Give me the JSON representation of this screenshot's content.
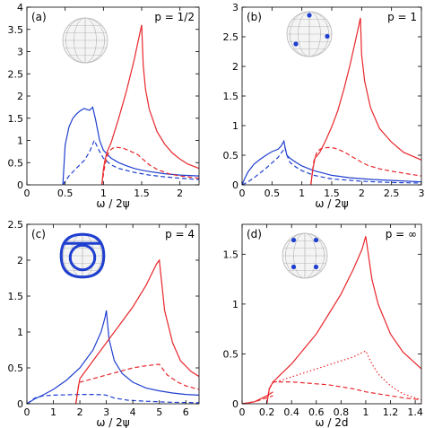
{
  "colors": {
    "blue": "#1f3fd0",
    "red": "#e8262b",
    "axis": "#000000",
    "sphere_line": "#b8b8b8"
  },
  "chart_data": [
    {
      "type": "line",
      "panel_label": "(a)",
      "annotation": "p = 1/2",
      "xlabel": "ω / 2ψ",
      "ylabel": "",
      "xlim": [
        0,
        2.25
      ],
      "ylim": [
        0,
        4
      ],
      "xticks": [
        0,
        0.5,
        1,
        1.5,
        2
      ],
      "xtick_labels": [
        "0",
        "0.5",
        "1",
        "1.5",
        "2"
      ],
      "yticks": [
        0,
        0.5,
        1,
        1.5,
        2,
        2.5,
        3,
        3.5,
        4
      ],
      "ytick_labels": [
        "0",
        "0.5",
        "1",
        "1.5",
        "2",
        "2.5",
        "3",
        "3.5",
        "4"
      ],
      "inset_icon": "sphere-icon",
      "inset_dots": [],
      "series": [
        {
          "color": "blue",
          "style": "solid",
          "x": [
            0.47,
            0.5,
            0.55,
            0.6,
            0.65,
            0.7,
            0.75,
            0.78,
            0.82,
            0.86,
            0.9,
            0.95,
            1.0,
            1.1,
            1.2,
            1.3,
            1.4,
            1.5,
            1.6,
            1.8,
            2.0,
            2.25
          ],
          "y": [
            0,
            0.9,
            1.3,
            1.5,
            1.6,
            1.67,
            1.72,
            1.7,
            1.68,
            1.75,
            1.45,
            1.0,
            0.78,
            0.6,
            0.5,
            0.43,
            0.37,
            0.33,
            0.3,
            0.25,
            0.22,
            0.2
          ]
        },
        {
          "color": "blue",
          "style": "dashed",
          "x": [
            0.47,
            0.55,
            0.65,
            0.75,
            0.82,
            0.88,
            0.95,
            1.0,
            1.1,
            1.2,
            1.4,
            1.6,
            1.8,
            2.0,
            2.25
          ],
          "y": [
            0,
            0.2,
            0.38,
            0.55,
            0.75,
            1.0,
            0.75,
            0.6,
            0.45,
            0.37,
            0.28,
            0.22,
            0.18,
            0.15,
            0.12
          ]
        },
        {
          "color": "red",
          "style": "solid",
          "x": [
            0.98,
            1.0,
            1.02,
            1.05,
            1.1,
            1.2,
            1.3,
            1.4,
            1.45,
            1.5,
            1.52,
            1.55,
            1.6,
            1.7,
            1.8,
            1.9,
            2.0,
            2.1,
            2.25
          ],
          "y": [
            0,
            0.35,
            0.55,
            0.75,
            0.95,
            1.5,
            2.1,
            2.8,
            3.2,
            3.6,
            2.7,
            2.15,
            1.7,
            1.2,
            0.92,
            0.72,
            0.58,
            0.47,
            0.37
          ]
        },
        {
          "color": "red",
          "style": "dashed",
          "x": [
            0.98,
            1.02,
            1.06,
            1.1,
            1.15,
            1.25,
            1.35,
            1.45,
            1.5,
            1.6,
            1.7,
            1.85,
            2.0,
            2.25
          ],
          "y": [
            0,
            0.45,
            0.7,
            0.8,
            0.85,
            0.83,
            0.76,
            0.68,
            0.6,
            0.45,
            0.35,
            0.25,
            0.2,
            0.15
          ]
        }
      ]
    },
    {
      "type": "line",
      "panel_label": "(b)",
      "annotation": "p = 1",
      "xlabel": "ω / 2ψ",
      "ylabel": "",
      "xlim": [
        0,
        3
      ],
      "ylim": [
        0,
        3
      ],
      "xticks": [
        0,
        0.5,
        1,
        1.5,
        2,
        2.5,
        3
      ],
      "xtick_labels": [
        "0",
        "0.5",
        "1",
        "1.5",
        "2",
        "2.5",
        "3"
      ],
      "yticks": [
        0,
        0.5,
        1,
        1.5,
        2,
        2.5,
        3
      ],
      "ytick_labels": [
        "0",
        "0.5",
        "1",
        "1.5",
        "2",
        "2.5",
        "3"
      ],
      "inset_icon": "sphere-icon",
      "inset_dots": [
        [
          0.5,
          0.08
        ],
        [
          0.2,
          0.72
        ],
        [
          0.9,
          0.55
        ]
      ],
      "series": [
        {
          "color": "blue",
          "style": "solid",
          "x": [
            0,
            0.05,
            0.1,
            0.2,
            0.3,
            0.4,
            0.5,
            0.6,
            0.65,
            0.7,
            0.72,
            0.75,
            0.8,
            0.9,
            1.0,
            1.2,
            1.5,
            1.8,
            2.2,
            2.6,
            3.0
          ],
          "y": [
            0,
            0.12,
            0.22,
            0.35,
            0.43,
            0.5,
            0.56,
            0.6,
            0.65,
            0.74,
            0.62,
            0.5,
            0.45,
            0.38,
            0.32,
            0.24,
            0.16,
            0.12,
            0.09,
            0.07,
            0.05
          ]
        },
        {
          "color": "blue",
          "style": "dashed",
          "x": [
            0,
            0.1,
            0.2,
            0.3,
            0.4,
            0.5,
            0.6,
            0.65,
            0.7,
            0.72,
            0.75,
            0.8,
            0.9,
            1.0,
            1.2,
            1.5,
            2.0,
            2.5,
            3.0
          ],
          "y": [
            0,
            0.05,
            0.12,
            0.2,
            0.28,
            0.37,
            0.46,
            0.53,
            0.6,
            0.63,
            0.5,
            0.38,
            0.3,
            0.24,
            0.16,
            0.1,
            0.06,
            0.04,
            0.03
          ]
        },
        {
          "color": "red",
          "style": "solid",
          "x": [
            1.15,
            1.18,
            1.22,
            1.26,
            1.3,
            1.4,
            1.5,
            1.6,
            1.7,
            1.8,
            1.9,
            1.98,
            2.0,
            2.05,
            2.15,
            2.3,
            2.5,
            2.7,
            3.0
          ],
          "y": [
            0,
            0.25,
            0.45,
            0.5,
            0.55,
            0.75,
            0.98,
            1.25,
            1.6,
            2.0,
            2.45,
            2.82,
            2.2,
            1.75,
            1.3,
            0.95,
            0.72,
            0.55,
            0.42
          ]
        },
        {
          "color": "red",
          "style": "dashed",
          "x": [
            1.15,
            1.2,
            1.25,
            1.3,
            1.35,
            1.45,
            1.55,
            1.65,
            1.75,
            1.85,
            1.95,
            2.0,
            2.1,
            2.3,
            2.5,
            2.8,
            3.0
          ],
          "y": [
            0,
            0.4,
            0.55,
            0.6,
            0.62,
            0.63,
            0.62,
            0.58,
            0.53,
            0.47,
            0.41,
            0.38,
            0.33,
            0.27,
            0.23,
            0.18,
            0.15
          ]
        }
      ]
    },
    {
      "type": "line",
      "panel_label": "(c)",
      "annotation": "p = 4",
      "xlabel": "ω / 2ψ",
      "ylabel": "",
      "xlim": [
        0,
        6.5
      ],
      "ylim": [
        0,
        2.5
      ],
      "xticks": [
        0,
        1,
        2,
        3,
        4,
        5,
        6
      ],
      "xtick_labels": [
        "0",
        "1",
        "2",
        "3",
        "4",
        "5",
        "6"
      ],
      "yticks": [
        0,
        0.5,
        1,
        1.5,
        2,
        2.5
      ],
      "ytick_labels": [
        "0",
        "0.5",
        "1",
        "1.5",
        "2",
        "2.5"
      ],
      "inset_icon": "cube-sphere-icon",
      "inset_dots": [],
      "series": [
        {
          "color": "blue",
          "style": "solid",
          "x": [
            0,
            0.3,
            0.6,
            1.0,
            1.5,
            2.0,
            2.5,
            2.8,
            2.95,
            3.0,
            3.1,
            3.3,
            3.6,
            4.0,
            4.5,
            5.0,
            5.5,
            6.0,
            6.5
          ],
          "y": [
            0,
            0.07,
            0.12,
            0.2,
            0.33,
            0.5,
            0.75,
            1.0,
            1.2,
            1.3,
            0.9,
            0.6,
            0.42,
            0.3,
            0.22,
            0.18,
            0.15,
            0.13,
            0.12
          ]
        },
        {
          "color": "blue",
          "style": "dashed",
          "x": [
            0,
            0.3,
            0.6,
            1.0,
            1.5,
            2.0,
            2.5,
            2.9,
            3.0,
            3.3,
            3.8,
            4.5,
            5.5,
            6.5
          ],
          "y": [
            0,
            0.08,
            0.11,
            0.12,
            0.125,
            0.13,
            0.13,
            0.125,
            0.12,
            0.08,
            0.05,
            0.035,
            0.02,
            0.015
          ]
        },
        {
          "color": "red",
          "style": "solid",
          "x": [
            1.85,
            1.95,
            2.0,
            2.5,
            3.0,
            3.5,
            4.0,
            4.5,
            4.9,
            5.0,
            5.2,
            5.5,
            5.8,
            6.2,
            6.5
          ],
          "y": [
            0,
            0.25,
            0.35,
            0.6,
            0.85,
            1.1,
            1.35,
            1.65,
            1.95,
            2.0,
            1.3,
            0.85,
            0.6,
            0.45,
            0.38
          ]
        },
        {
          "color": "red",
          "style": "dashed",
          "x": [
            1.85,
            1.95,
            2.0,
            2.5,
            3.0,
            3.5,
            4.0,
            4.5,
            5.0,
            5.3,
            5.7,
            6.0,
            6.5
          ],
          "y": [
            0,
            0.25,
            0.3,
            0.35,
            0.4,
            0.45,
            0.5,
            0.53,
            0.55,
            0.4,
            0.3,
            0.25,
            0.2
          ]
        }
      ]
    },
    {
      "type": "line",
      "panel_label": "(d)",
      "annotation": "p = ∞",
      "xlabel": "ω / 2d",
      "ylabel": "",
      "xlim": [
        0,
        1.45
      ],
      "ylim": [
        0,
        1.8
      ],
      "xticks": [
        0,
        0.2,
        0.4,
        0.6,
        0.8,
        1,
        1.2,
        1.4
      ],
      "xtick_labels": [
        "0",
        "0.2",
        "0.4",
        "0.6",
        "0.8",
        "1",
        "1.2",
        "1.4"
      ],
      "yticks": [
        0,
        0.5,
        1,
        1.5
      ],
      "ytick_labels": [
        "0",
        "0.5",
        "1",
        "1.5"
      ],
      "inset_icon": "sphere-icon",
      "inset_dots": [
        [
          0.25,
          0.15
        ],
        [
          0.75,
          0.15
        ],
        [
          0.25,
          0.75
        ],
        [
          0.75,
          0.75
        ]
      ],
      "series": [
        {
          "color": "red",
          "style": "solid",
          "x": [
            0.2,
            0.22,
            0.25,
            0.3,
            0.4,
            0.5,
            0.6,
            0.7,
            0.8,
            0.9,
            0.97,
            1.0,
            1.05,
            1.1,
            1.2,
            1.3,
            1.45
          ],
          "y": [
            0,
            0.15,
            0.22,
            0.28,
            0.4,
            0.55,
            0.7,
            0.9,
            1.1,
            1.35,
            1.55,
            1.68,
            1.25,
            1.0,
            0.7,
            0.52,
            0.35
          ]
        },
        {
          "color": "red",
          "style": "dotted",
          "x": [
            0.2,
            0.22,
            0.25,
            0.3,
            0.4,
            0.5,
            0.6,
            0.7,
            0.8,
            0.9,
            1.0,
            1.05,
            1.1,
            1.2,
            1.3,
            1.45
          ],
          "y": [
            0,
            0.15,
            0.21,
            0.23,
            0.27,
            0.31,
            0.35,
            0.39,
            0.43,
            0.47,
            0.53,
            0.4,
            0.3,
            0.18,
            0.1,
            0.04
          ]
        },
        {
          "color": "red",
          "style": "dashed",
          "x": [
            0.2,
            0.22,
            0.25,
            0.3,
            0.4,
            0.5,
            0.6,
            0.7,
            0.8,
            0.9,
            1.0,
            1.1,
            1.2,
            1.3,
            1.45
          ],
          "y": [
            0,
            0.15,
            0.22,
            0.22,
            0.22,
            0.21,
            0.2,
            0.19,
            0.17,
            0.15,
            0.12,
            0.1,
            0.08,
            0.06,
            0.04
          ]
        },
        {
          "color": "red",
          "style": "solid",
          "x": [
            0.0,
            0.1,
            0.2,
            0.25
          ],
          "y": [
            0,
            0.02,
            0.08,
            0.12
          ]
        },
        {
          "color": "red",
          "style": "dashed",
          "x": [
            0.0,
            0.1,
            0.2,
            0.25
          ],
          "y": [
            0,
            0.02,
            0.06,
            0.08
          ]
        }
      ]
    }
  ]
}
